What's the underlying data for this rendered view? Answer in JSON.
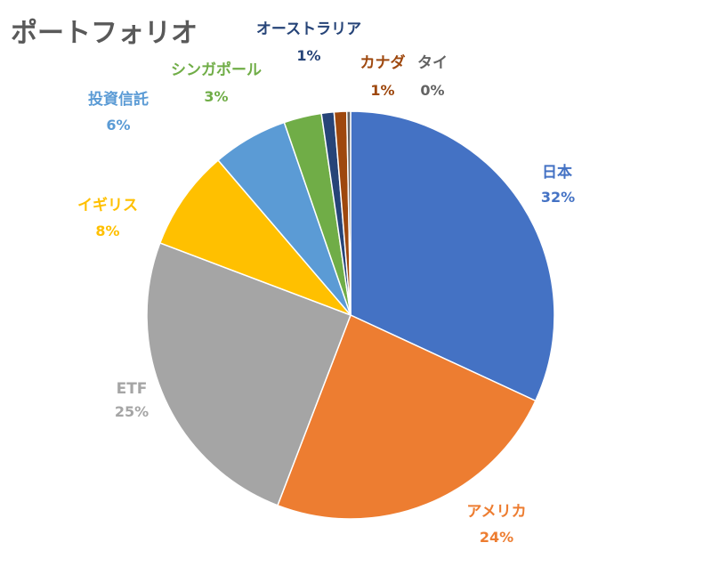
{
  "chart_data": {
    "type": "pie",
    "title": "ポートフォリオ",
    "slices": [
      {
        "name": "日本",
        "value": 32,
        "label": "32%",
        "color": "#4472C4"
      },
      {
        "name": "アメリカ",
        "value": 24,
        "label": "24%",
        "color": "#ED7D31"
      },
      {
        "name": "ETF",
        "value": 25,
        "label": "25%",
        "color": "#A5A5A5"
      },
      {
        "name": "イギリス",
        "value": 8,
        "label": "8%",
        "color": "#FFC000"
      },
      {
        "name": "投資信託",
        "value": 6,
        "label": "6%",
        "color": "#5B9BD5"
      },
      {
        "name": "シンガポール",
        "value": 3,
        "label": "3%",
        "color": "#70AD47"
      },
      {
        "name": "オーストラリア",
        "value": 1,
        "label": "1%",
        "color": "#264478"
      },
      {
        "name": "カナダ",
        "value": 1,
        "label": "1%",
        "color": "#9E480E"
      },
      {
        "name": "タイ",
        "value": 0.3,
        "label": "0%",
        "color": "#636363"
      }
    ],
    "legend": "none",
    "data_labels": "category name and percentage, outside slices"
  }
}
